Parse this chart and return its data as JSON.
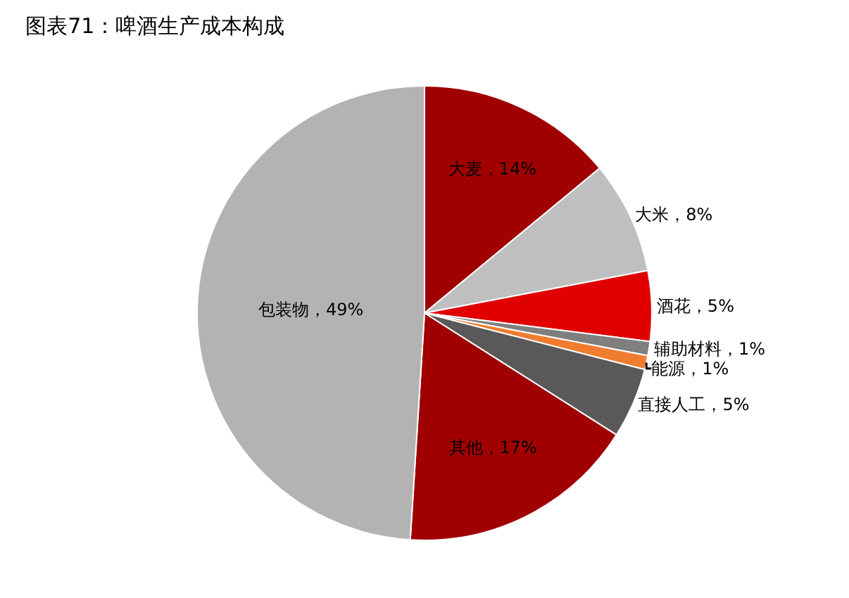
{
  "chart_data": {
    "type": "pie",
    "title": "图表71：啤酒生产成本构成",
    "categories": [
      "大麦",
      "大米",
      "酒花",
      "辅助材料",
      "能源",
      "直接人工",
      "其他",
      "包装物"
    ],
    "values": [
      14,
      8,
      5,
      1,
      1,
      5,
      17,
      49
    ],
    "value_labels": [
      "14%",
      "8%",
      "5%",
      "1%",
      "1%",
      "5%",
      "17%",
      "49%"
    ],
    "colors": [
      "#a00000",
      "#bfbfbf",
      "#e00000",
      "#7f7f7f",
      "#f07c30",
      "#595959",
      "#a00000",
      "#b3b3b3"
    ],
    "legend": false
  }
}
